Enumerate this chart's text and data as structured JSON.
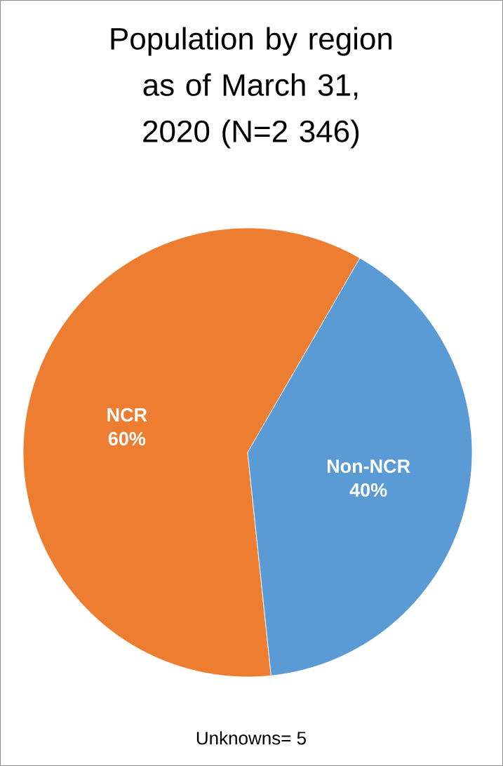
{
  "chart_data": {
    "type": "pie",
    "title": "Population by region as of March 31, 2020 (N=2 346)",
    "categories": [
      "NCR",
      "Non-NCR"
    ],
    "values": [
      60,
      40
    ],
    "value_labels": [
      "60%",
      "40%"
    ],
    "colors": [
      "#ed7d31",
      "#5b9bd5"
    ],
    "annotations": [
      "Unknowns= 5"
    ]
  }
}
